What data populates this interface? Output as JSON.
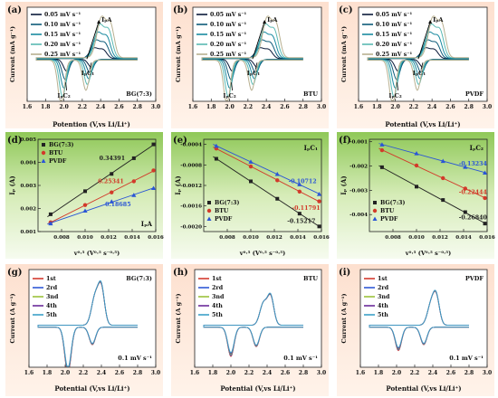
{
  "chart_data": [
    {
      "id": "a",
      "panel_label": "(a)",
      "type": "line",
      "sample": "BG(7:3)",
      "ylabel": "Current (mA g⁻¹)",
      "xlabel": "Potention (V,vs Li/Li⁺)",
      "xticks": [
        "1.6",
        "1.8",
        "2.0",
        "2.2",
        "2.4",
        "2.6",
        "2.8",
        "3.0"
      ],
      "xlim": [
        1.6,
        3.0
      ],
      "legend": [
        "0.05 mV s⁻¹",
        "0.10 mV s⁻¹",
        "0.15 mV s⁻¹",
        "0.20 mV s⁻¹",
        "0.25 mV s⁻¹"
      ],
      "colors": [
        "#0b1a3a",
        "#0e5c7a",
        "#1a8aa0",
        "#5ab9b3",
        "#b8b090"
      ],
      "annotations": [
        "IₚA",
        "IₚC₁",
        "IₚC₂"
      ]
    },
    {
      "id": "b",
      "panel_label": "(b)",
      "type": "line",
      "sample": "BTU",
      "ylabel": "Current (mA g⁻¹)",
      "xlabel": "",
      "xticks": [
        "1.6",
        "1.8",
        "2.0",
        "2.2",
        "2.4",
        "2.6",
        "2.8",
        "3.0"
      ],
      "xlim": [
        1.6,
        3.0
      ],
      "legend": [
        "0.05 mV s⁻¹",
        "0.10 mV s⁻¹",
        "0.15 mV s⁻¹",
        "0.20 mV s⁻¹",
        "0.25 mV s⁻¹"
      ],
      "colors": [
        "#0b1a3a",
        "#0e5c7a",
        "#1a8aa0",
        "#5ab9b3",
        "#b8b090"
      ],
      "annotations": [
        "IₚA",
        "IₚC₁",
        "IₚC₂"
      ]
    },
    {
      "id": "c",
      "panel_label": "(c)",
      "type": "line",
      "sample": "PVDF",
      "ylabel": "Current (mA g⁻¹)",
      "xlabel": "Potential (V,vs Li/Li⁺)",
      "xticks": [
        "1.6",
        "1.8",
        "2.0",
        "2.2",
        "2.4",
        "2.6",
        "2.8",
        "3.0"
      ],
      "xlim": [
        1.6,
        3.0
      ],
      "legend": [
        "0.05 mV s⁻¹",
        "0.10 mV s⁻¹",
        "0.15 mV s⁻¹",
        "0.20 mV s⁻¹",
        "0.25 mV s⁻¹"
      ],
      "colors": [
        "#0b1a3a",
        "#0e5c7a",
        "#1a8aa0",
        "#5ab9b3",
        "#b8b090"
      ],
      "annotations": [
        "IₚA",
        "IₚC₁",
        "IₚC₂"
      ]
    },
    {
      "id": "d",
      "panel_label": "(d)",
      "type": "scatter",
      "corner_label": "IₚA",
      "ylabel": "Iₚ (A)",
      "xlabel": "v⁰·⁵ (V⁰·⁵ s⁻⁰·⁵)",
      "xlim": [
        0.006,
        0.016
      ],
      "ylim": [
        0.001,
        0.005
      ],
      "xticks": [
        "0.008",
        "0.010",
        "0.012",
        "0.014",
        "0.016"
      ],
      "yticks": [
        "0.001",
        "0.002",
        "0.003",
        "0.004",
        "0.005"
      ],
      "x": [
        0.00707,
        0.01,
        0.01225,
        0.01414,
        0.01581
      ],
      "series": [
        {
          "name": "BG(7:3)",
          "marker": "square",
          "color": "#222222",
          "slope_label": "0.34391",
          "values": [
            0.00175,
            0.00275,
            0.0035,
            0.00418,
            0.00478
          ]
        },
        {
          "name": "BTU",
          "marker": "circle",
          "color": "#d23a2a",
          "slope_label": "0.25341",
          "values": [
            0.0014,
            0.00215,
            0.0027,
            0.00318,
            0.00365
          ]
        },
        {
          "name": "PVDF",
          "marker": "triangle",
          "color": "#2a55d6",
          "slope_label": "0.18685",
          "values": [
            0.00135,
            0.0019,
            0.0023,
            0.00258,
            0.00288
          ]
        }
      ]
    },
    {
      "id": "e",
      "panel_label": "(e)",
      "type": "scatter",
      "corner_label": "IₚC₁",
      "ylabel": "Iₚ (A)",
      "xlabel": "v⁰·⁵ (V⁰·⁵ s⁻⁰·⁵)",
      "xlim": [
        0.006,
        0.016
      ],
      "ylim": [
        -0.0021,
        -0.0003
      ],
      "xticks": [
        "0.008",
        "0.010",
        "0.012",
        "0.014",
        "0.016"
      ],
      "yticks": [
        "-0.0004",
        "-0.0008",
        "-0.0012",
        "-0.0016",
        "-0.0020"
      ],
      "x": [
        0.00707,
        0.01,
        0.01225,
        0.01414,
        0.01581
      ],
      "series": [
        {
          "name": "BG(7:3)",
          "marker": "square",
          "color": "#222222",
          "slope_label": "-0.15217",
          "values": [
            -0.00068,
            -0.00112,
            -0.00146,
            -0.00175,
            -0.002
          ]
        },
        {
          "name": "BTU",
          "marker": "circle",
          "color": "#d23a2a",
          "slope_label": "-0.11791",
          "values": [
            -0.00048,
            -0.00083,
            -0.0011,
            -0.00132,
            -0.00151
          ]
        },
        {
          "name": "PVDF",
          "marker": "triangle",
          "color": "#2a55d6",
          "slope_label": "-0.10712",
          "values": [
            -0.00043,
            -0.00074,
            -0.00098,
            -0.00118,
            -0.00137
          ]
        }
      ]
    },
    {
      "id": "f",
      "panel_label": "(f)",
      "type": "scatter",
      "corner_label": "IₚC₂",
      "ylabel": "Iₚ (A)",
      "xlabel": "v⁰·⁵ (V⁰·⁵ s⁻⁰·⁵)",
      "xlim": [
        0.006,
        0.016
      ],
      "ylim": [
        -0.0047,
        -0.0009
      ],
      "xticks": [
        "0.008",
        "0.010",
        "0.012",
        "0.014",
        "0.016"
      ],
      "yticks": [
        "-0.001",
        "-0.002",
        "-0.003",
        "-0.004"
      ],
      "x": [
        0.00707,
        0.01,
        0.01225,
        0.01414,
        0.01581
      ],
      "series": [
        {
          "name": "BG(7:3)",
          "marker": "square",
          "color": "#222222",
          "slope_label": "-0.26840",
          "values": [
            -0.00205,
            -0.00285,
            -0.0034,
            -0.0039,
            -0.00437
          ]
        },
        {
          "name": "BTU",
          "marker": "circle",
          "color": "#d23a2a",
          "slope_label": "-0.22444",
          "values": [
            -0.00135,
            -0.00198,
            -0.0025,
            -0.00293,
            -0.00332
          ]
        },
        {
          "name": "PVDF",
          "marker": "triangle",
          "color": "#2a55d6",
          "slope_label": "-0.13234",
          "values": [
            -0.00112,
            -0.00148,
            -0.0018,
            -0.00204,
            -0.00228
          ]
        }
      ]
    },
    {
      "id": "g",
      "panel_label": "(g)",
      "type": "line",
      "sample": "BG(7:3)",
      "ylabel": "Current (A g⁻¹)",
      "xlabel": "Potential (V,vs Li/Li⁺)",
      "xticks": [
        "1.6",
        "1.8",
        "2.0",
        "2.2",
        "2.4",
        "2.6",
        "2.8",
        "3.0"
      ],
      "xlim": [
        1.6,
        3.0
      ],
      "rate_label": "0.1 mV s⁻¹",
      "legend": [
        "1st",
        "2rd",
        "3nd",
        "4th",
        "5th"
      ],
      "colors": [
        "#d43a2f",
        "#2f59d6",
        "#9bc23a",
        "#6a2a9a",
        "#3aa0c8"
      ]
    },
    {
      "id": "h",
      "panel_label": "(h)",
      "type": "line",
      "sample": "BTU",
      "ylabel": "Current (A g⁻¹)",
      "xlabel": "Potential (V,vs Li/Li⁺)",
      "xticks": [
        "1.6",
        "1.8",
        "2.0",
        "2.2",
        "2.4",
        "2.6",
        "2.8",
        "3.0"
      ],
      "xlim": [
        1.6,
        3.0
      ],
      "rate_label": "0.1 mV s⁻¹",
      "legend": [
        "1st",
        "2rd",
        "3nd",
        "4th",
        "5th"
      ],
      "colors": [
        "#d43a2f",
        "#2f59d6",
        "#9bc23a",
        "#6a2a9a",
        "#3aa0c8"
      ]
    },
    {
      "id": "i",
      "panel_label": "(i)",
      "type": "line",
      "sample": "PVDF",
      "ylabel": "Current (A g⁻¹)",
      "xlabel": "Potential (V,vs Li/Li⁺)",
      "xticks": [
        "1.6",
        "1.8",
        "2.0",
        "2.2",
        "2.4",
        "2.6",
        "2.8",
        "3.0"
      ],
      "xlim": [
        1.6,
        3.0
      ],
      "rate_label": "0.1 mV s⁻¹",
      "legend": [
        "1st",
        "2rd",
        "3nd",
        "4th",
        "5th"
      ],
      "colors": [
        "#d43a2f",
        "#2f59d6",
        "#9bc23a",
        "#6a2a9a",
        "#3aa0c8"
      ]
    }
  ]
}
